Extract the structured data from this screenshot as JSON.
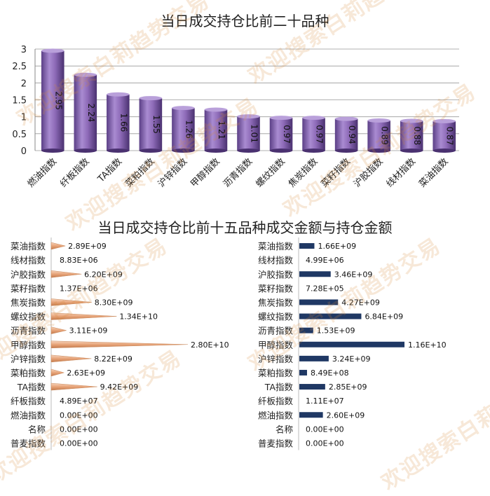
{
  "chart_data": [
    {
      "type": "bar",
      "title": "当日成交持仓比前二十品种",
      "categories": [
        "燃油指数",
        "纤板指数",
        "TA指数",
        "菜粕指数",
        "沪锌指数",
        "甲醇指数",
        "沥青指数",
        "螺纹指数",
        "焦炭指数",
        "菜籽指数",
        "沪胶指数",
        "线材指数",
        "菜油指数"
      ],
      "values": [
        2.95,
        2.24,
        1.66,
        1.55,
        1.26,
        1.21,
        1.01,
        0.97,
        0.97,
        0.94,
        0.89,
        0.88,
        0.87
      ],
      "ylim": [
        0,
        3
      ],
      "yticks": [
        "0",
        "0.5",
        "1",
        "1.5",
        "2",
        "2.5",
        "3"
      ],
      "grid": true,
      "bar_color": "#8e6bb8"
    },
    {
      "type": "bar",
      "title": "当日成交持仓比前十五品种成交金额与持仓金额",
      "panels": [
        {
          "categories": [
            "菜油指数",
            "线材指数",
            "沪胶指数",
            "菜籽指数",
            "焦炭指数",
            "螺纹指数",
            "沥青指数",
            "甲醇指数",
            "沪锌指数",
            "菜粕指数",
            "TA指数",
            "纤板指数",
            "燃油指数",
            "名称",
            "普麦指数"
          ],
          "values": [
            2890000000.0,
            8830000.0,
            6200000000.0,
            1370000.0,
            8300000000.0,
            13400000000.0,
            3110000000.0,
            28000000000.0,
            8220000000.0,
            2630000000.0,
            9420000000.0,
            48900000.0,
            0,
            0,
            0
          ],
          "labels": [
            "2.89E+09",
            "8.83E+06",
            "6.20E+09",
            "1.37E+06",
            "8.30E+09",
            "1.34E+10",
            "3.11E+09",
            "2.80E+10",
            "8.22E+09",
            "2.63E+09",
            "9.42E+09",
            "4.89E+07",
            "0.00E+00",
            "0.00E+00",
            "0.00E+00"
          ],
          "bar_color": "#e7a479"
        },
        {
          "categories": [
            "菜油指数",
            "线材指数",
            "沪胶指数",
            "菜籽指数",
            "焦炭指数",
            "螺纹指数",
            "沥青指数",
            "甲醇指数",
            "沪锌指数",
            "菜粕指数",
            "TA指数",
            "纤板指数",
            "燃油指数",
            "名称",
            "普麦指数"
          ],
          "values": [
            1660000000.0,
            4990000.0,
            3460000000.0,
            728000.0,
            4270000000.0,
            6840000000.0,
            1530000000.0,
            11600000000.0,
            3240000000.0,
            849000000.0,
            2850000000.0,
            11100000.0,
            2600000000.0,
            0,
            0
          ],
          "labels": [
            "1.66E+09",
            "4.99E+06",
            "3.46E+09",
            "7.28E+05",
            "4.27E+09",
            "6.84E+09",
            "1.53E+09",
            "1.16E+10",
            "3.24E+09",
            "8.49E+08",
            "2.85E+09",
            "1.11E+07",
            "2.60E+09",
            "0.00E+00",
            "0.00E+00"
          ],
          "bar_color": "#1f3864"
        }
      ]
    }
  ],
  "watermark": "欢迎搜索白莉趋势交易"
}
